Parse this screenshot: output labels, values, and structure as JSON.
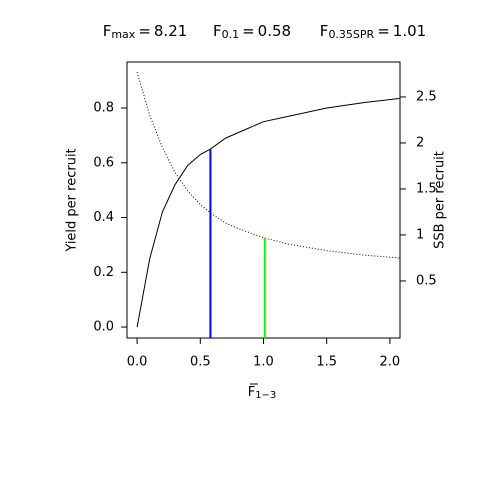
{
  "chart_data": {
    "type": "line",
    "title_stats": [
      {
        "symbol": "F",
        "subscript": "max",
        "relation": "=",
        "value": 8.21
      },
      {
        "symbol": "F",
        "subscript": "0.1",
        "relation": "=",
        "value": 0.58
      },
      {
        "symbol": "F",
        "subscript": "0.35SPR",
        "relation": "=",
        "value": 1.01
      }
    ],
    "xlabel": {
      "symbol": "F",
      "subscript": "1−3"
    },
    "ylabel": "Yield per recruit",
    "y2label": "SSB per recruit",
    "xlim": [
      -0.08,
      2.08
    ],
    "xticks": [
      {
        "value": 0,
        "label": "0.0"
      },
      0.5,
      {
        "value": 1,
        "label": "1.0"
      },
      1.5,
      {
        "value": 2,
        "label": "2.0"
      }
    ],
    "ylim": [
      -0.04,
      0.968
    ],
    "yticks": [
      {
        "value": 0,
        "label": "0.0"
      },
      0.2,
      0.4,
      0.6,
      0.8
    ],
    "y2lim": [
      -0.12,
      2.88
    ],
    "y2ticks": [
      0.5,
      1,
      1.5,
      2,
      2.5
    ],
    "series": [
      {
        "color": "#000000",
        "linestyle": "solid",
        "x": [
          0,
          0.1,
          0.2,
          0.3,
          0.4,
          0.5,
          0.58,
          0.7,
          0.8,
          1.0,
          1.2,
          1.5,
          1.8,
          2.08
        ],
        "values": [
          0,
          0.25,
          0.42,
          0.52,
          0.59,
          0.63,
          0.65,
          0.69,
          0.71,
          0.75,
          0.77,
          0.8,
          0.82,
          0.835
        ]
      },
      {
        "color": "#000000",
        "linestyle": "dotted",
        "axis": "y2",
        "x": [
          0,
          0.1,
          0.2,
          0.3,
          0.4,
          0.5,
          0.58,
          0.7,
          0.8,
          1.0,
          1.2,
          1.5,
          1.8,
          2.08
        ],
        "values": [
          2.77,
          2.3,
          1.95,
          1.68,
          1.48,
          1.33,
          1.24,
          1.13,
          1.07,
          0.97,
          0.9,
          0.83,
          0.78,
          0.75
        ]
      }
    ],
    "vlines": [
      {
        "x": 0.58,
        "top": 0.65,
        "color": "#0000ff"
      },
      {
        "x": 1.01,
        "top": 0.97,
        "axis": "y2",
        "color": "#00ff00"
      }
    ]
  }
}
